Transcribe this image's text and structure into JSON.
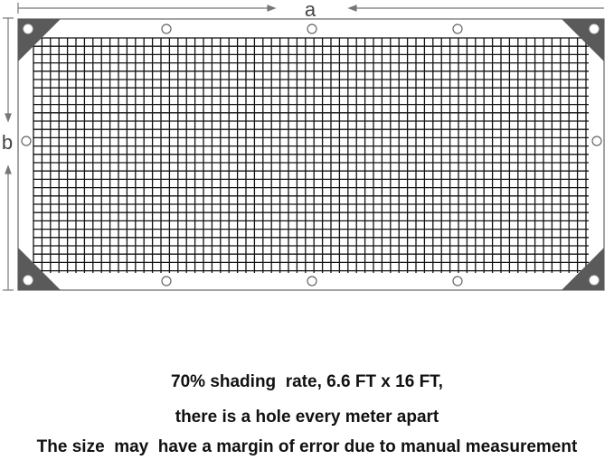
{
  "dimensions": {
    "width_label": "a",
    "height_label": "b"
  },
  "colors": {
    "frame": "#555555",
    "mesh": "#111111",
    "corner": "#5a5a5a"
  },
  "captions": [
    "70% shading  rate, 6.6 FT x 16 FT,",
    "there is a hole every meter apart",
    "The size  may  have a margin of error due to manual measurement"
  ]
}
